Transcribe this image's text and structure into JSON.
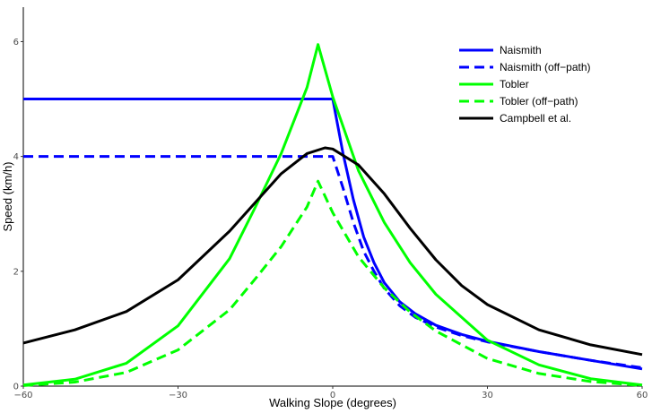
{
  "chart_data": {
    "type": "line",
    "title": "",
    "xlabel": "Walking Slope (degrees)",
    "ylabel": "Speed (km/h)",
    "xlim": [
      -60,
      60
    ],
    "ylim": [
      0,
      6.6
    ],
    "x_ticks": [
      -60,
      -30,
      0,
      30,
      60
    ],
    "x_tick_labels": [
      "−60",
      "−30",
      "0",
      "30",
      "60"
    ],
    "y_ticks": [
      0,
      2,
      4,
      6
    ],
    "y_tick_labels": [
      "0",
      "2",
      "4",
      "6"
    ],
    "grid": false,
    "legend_position": "top-right",
    "series": [
      {
        "name": "Naismith",
        "color": "#0000ff",
        "dash": "solid",
        "x": [
          -60,
          0,
          2,
          4,
          6,
          8,
          10,
          13,
          16,
          20,
          25,
          30,
          40,
          50,
          60
        ],
        "y": [
          5.0,
          5.0,
          4.05,
          3.25,
          2.6,
          2.15,
          1.8,
          1.47,
          1.26,
          1.06,
          0.9,
          0.78,
          0.6,
          0.45,
          0.3
        ]
      },
      {
        "name": "Naismith (off−path)",
        "color": "#0000ff",
        "dash": "dashed",
        "x": [
          -60,
          0,
          2,
          4,
          6,
          8,
          10,
          13,
          16,
          20,
          25,
          30,
          40,
          50,
          60
        ],
        "y": [
          4.0,
          4.0,
          3.45,
          2.85,
          2.35,
          2.0,
          1.7,
          1.4,
          1.2,
          1.03,
          0.88,
          0.77,
          0.6,
          0.45,
          0.32
        ]
      },
      {
        "name": "Tobler",
        "color": "#00ff00",
        "dash": "solid",
        "x": [
          -60,
          -50,
          -40,
          -30,
          -20,
          -15,
          -10,
          -5,
          -2.86,
          0,
          5,
          10,
          15,
          20,
          30,
          40,
          50,
          60
        ],
        "y": [
          0.02,
          0.12,
          0.4,
          1.05,
          2.22,
          3.12,
          4.05,
          5.2,
          5.95,
          5.04,
          3.75,
          2.85,
          2.15,
          1.6,
          0.8,
          0.37,
          0.13,
          0.02
        ]
      },
      {
        "name": "Tobler (off−path)",
        "color": "#00ff00",
        "dash": "dashed",
        "x": [
          -60,
          -50,
          -40,
          -30,
          -20,
          -15,
          -10,
          -5,
          -2.86,
          0,
          5,
          10,
          15,
          20,
          30,
          40,
          50,
          60
        ],
        "y": [
          0.01,
          0.07,
          0.24,
          0.63,
          1.33,
          1.87,
          2.43,
          3.12,
          3.57,
          3.02,
          2.25,
          1.71,
          1.29,
          0.96,
          0.48,
          0.22,
          0.08,
          0.01
        ]
      },
      {
        "name": "Campbell et al.",
        "color": "#000000",
        "dash": "solid",
        "x": [
          -60,
          -50,
          -40,
          -30,
          -20,
          -15,
          -10,
          -5,
          -1.5,
          0,
          5,
          10,
          15,
          20,
          25,
          30,
          40,
          50,
          60
        ],
        "y": [
          0.75,
          0.98,
          1.3,
          1.85,
          2.7,
          3.2,
          3.7,
          4.05,
          4.15,
          4.13,
          3.85,
          3.35,
          2.75,
          2.2,
          1.75,
          1.42,
          0.98,
          0.72,
          0.55
        ]
      }
    ]
  }
}
